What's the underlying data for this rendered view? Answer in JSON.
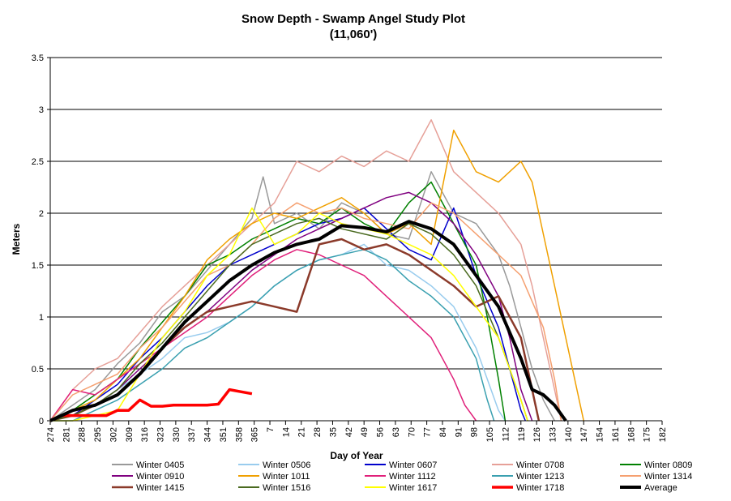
{
  "chart_data": {
    "type": "line",
    "title": "Snow Depth -  Swamp Angel Study Plot",
    "subtitle": "(11,060')",
    "xlabel": "Day of Year",
    "ylabel": "Meters",
    "ylim": [
      0,
      3.5
    ],
    "yticks": [
      "0",
      "0.5",
      "1",
      "1.5",
      "2",
      "2.5",
      "3",
      "3.5"
    ],
    "xticks": [
      "274",
      "281",
      "288",
      "295",
      "302",
      "309",
      "316",
      "323",
      "330",
      "337",
      "344",
      "351",
      "358",
      "365",
      "7",
      "14",
      "21",
      "28",
      "35",
      "42",
      "49",
      "56",
      "63",
      "70",
      "77",
      "84",
      "91",
      "98",
      "105",
      "112",
      "119",
      "126",
      "133",
      "140",
      "147",
      "154",
      "161",
      "168",
      "175",
      "182"
    ],
    "grid": "horizontal",
    "legend_position": "bottom",
    "series": [
      {
        "name": "Winter 0405",
        "color": "#999999",
        "width": 1.5,
        "x": [
          0,
          10,
          20,
          30,
          40,
          50,
          60,
          70,
          80,
          90,
          95,
          100,
          110,
          120,
          130,
          140,
          150,
          160,
          170,
          180,
          190,
          200,
          205,
          210,
          215,
          220,
          225
        ],
        "y": [
          0.0,
          0.15,
          0.3,
          0.55,
          0.75,
          1.05,
          1.2,
          1.45,
          1.7,
          1.95,
          2.35,
          1.9,
          2.0,
          1.85,
          2.1,
          2.0,
          1.8,
          1.75,
          2.4,
          2.0,
          1.9,
          1.6,
          1.3,
          0.9,
          0.5,
          0.2,
          0.0
        ]
      },
      {
        "name": "Winter 0506",
        "color": "#99ccee",
        "width": 1.5,
        "x": [
          0,
          10,
          20,
          30,
          40,
          50,
          60,
          70,
          80,
          90,
          100,
          110,
          120,
          130,
          140,
          150,
          160,
          170,
          180,
          190,
          195,
          200,
          203
        ],
        "y": [
          0.0,
          0.05,
          0.15,
          0.3,
          0.45,
          0.6,
          0.8,
          0.85,
          0.95,
          1.1,
          1.3,
          1.45,
          1.55,
          1.6,
          1.7,
          1.5,
          1.45,
          1.3,
          1.1,
          0.7,
          0.4,
          0.1,
          0.0
        ]
      },
      {
        "name": "Winter 0607",
        "color": "#0000cc",
        "width": 1.5,
        "x": [
          0,
          10,
          20,
          30,
          40,
          50,
          60,
          70,
          80,
          90,
          100,
          110,
          120,
          130,
          140,
          150,
          160,
          170,
          180,
          190,
          200,
          205,
          210,
          212
        ],
        "y": [
          0.0,
          0.05,
          0.2,
          0.35,
          0.6,
          0.8,
          1.05,
          1.3,
          1.5,
          1.6,
          1.7,
          1.8,
          1.9,
          1.95,
          2.05,
          1.85,
          1.65,
          1.55,
          2.05,
          1.4,
          0.9,
          0.5,
          0.1,
          0.0
        ]
      },
      {
        "name": "Winter 0708",
        "color": "#e6a098",
        "width": 1.5,
        "x": [
          0,
          10,
          20,
          30,
          40,
          50,
          60,
          70,
          80,
          90,
          100,
          110,
          120,
          130,
          140,
          150,
          160,
          170,
          180,
          190,
          200,
          210,
          215,
          220,
          225,
          228
        ],
        "y": [
          0.0,
          0.3,
          0.5,
          0.6,
          0.85,
          1.1,
          1.3,
          1.5,
          1.7,
          1.9,
          2.1,
          2.5,
          2.4,
          2.55,
          2.45,
          2.6,
          2.5,
          2.9,
          2.4,
          2.2,
          2.0,
          1.7,
          1.3,
          0.8,
          0.3,
          0.0
        ]
      },
      {
        "name": "Winter 0809",
        "color": "#008000",
        "width": 1.5,
        "x": [
          0,
          10,
          20,
          30,
          40,
          50,
          60,
          70,
          80,
          90,
          100,
          110,
          120,
          130,
          140,
          150,
          160,
          170,
          180,
          190,
          195,
          200,
          203
        ],
        "y": [
          0.0,
          0.1,
          0.25,
          0.4,
          0.7,
          0.95,
          1.2,
          1.5,
          1.6,
          1.75,
          1.85,
          1.95,
          1.9,
          2.05,
          1.9,
          1.8,
          2.1,
          2.3,
          1.9,
          1.5,
          1.0,
          0.4,
          0.0
        ]
      },
      {
        "name": "Winter 0910",
        "color": "#800080",
        "width": 1.5,
        "x": [
          0,
          10,
          20,
          30,
          40,
          50,
          60,
          70,
          80,
          90,
          100,
          110,
          120,
          130,
          140,
          150,
          160,
          170,
          180,
          190,
          200,
          205,
          210,
          215
        ],
        "y": [
          0.0,
          0.05,
          0.15,
          0.3,
          0.5,
          0.7,
          0.9,
          1.05,
          1.25,
          1.45,
          1.6,
          1.75,
          1.85,
          1.95,
          2.05,
          2.15,
          2.2,
          2.1,
          1.9,
          1.6,
          1.2,
          0.8,
          0.3,
          0.0
        ]
      },
      {
        "name": "Winter 1011",
        "color": "#f0a000",
        "width": 1.5,
        "x": [
          0,
          10,
          20,
          30,
          40,
          50,
          60,
          70,
          80,
          90,
          100,
          110,
          120,
          130,
          140,
          150,
          160,
          170,
          180,
          190,
          200,
          210,
          215,
          220,
          225,
          230,
          235,
          238
        ],
        "y": [
          0.0,
          0.1,
          0.2,
          0.4,
          0.6,
          0.9,
          1.2,
          1.55,
          1.75,
          1.9,
          2.0,
          1.95,
          2.05,
          2.15,
          2.0,
          1.8,
          1.9,
          1.7,
          2.8,
          2.4,
          2.3,
          2.5,
          2.3,
          1.8,
          1.3,
          0.8,
          0.3,
          0.0
        ]
      },
      {
        "name": "Winter 1112",
        "color": "#e0207a",
        "width": 1.5,
        "x": [
          0,
          10,
          20,
          30,
          40,
          50,
          60,
          70,
          80,
          90,
          100,
          110,
          120,
          130,
          140,
          150,
          160,
          170,
          175,
          180,
          185,
          190
        ],
        "y": [
          0.0,
          0.3,
          0.25,
          0.4,
          0.55,
          0.7,
          0.85,
          1.0,
          1.2,
          1.4,
          1.55,
          1.65,
          1.6,
          1.5,
          1.4,
          1.2,
          1.0,
          0.8,
          0.6,
          0.4,
          0.15,
          0.0
        ]
      },
      {
        "name": "Winter 1213",
        "color": "#3aa0b0",
        "width": 1.5,
        "x": [
          0,
          10,
          20,
          30,
          40,
          50,
          60,
          70,
          80,
          90,
          100,
          110,
          120,
          130,
          140,
          150,
          160,
          170,
          180,
          190,
          195,
          198
        ],
        "y": [
          0.0,
          0.0,
          0.1,
          0.2,
          0.35,
          0.5,
          0.7,
          0.8,
          0.95,
          1.1,
          1.3,
          1.45,
          1.55,
          1.6,
          1.65,
          1.55,
          1.35,
          1.2,
          1.0,
          0.6,
          0.2,
          0.0
        ]
      },
      {
        "name": "Winter 1314",
        "color": "#f5a070",
        "width": 1.5,
        "x": [
          0,
          10,
          20,
          30,
          40,
          50,
          60,
          70,
          80,
          90,
          100,
          110,
          120,
          130,
          140,
          150,
          160,
          170,
          180,
          190,
          200,
          210,
          220,
          225,
          228
        ],
        "y": [
          0.0,
          0.25,
          0.35,
          0.45,
          0.7,
          0.9,
          1.15,
          1.4,
          1.5,
          1.7,
          1.95,
          2.1,
          2.0,
          2.05,
          1.95,
          1.9,
          1.85,
          2.1,
          2.0,
          1.8,
          1.6,
          1.4,
          0.9,
          0.4,
          0.0
        ]
      },
      {
        "name": "Winter 1415",
        "color": "#8b3a2a",
        "width": 2.5,
        "x": [
          0,
          10,
          20,
          30,
          40,
          50,
          60,
          70,
          80,
          90,
          100,
          110,
          120,
          130,
          140,
          150,
          160,
          170,
          180,
          190,
          200,
          210,
          215,
          218
        ],
        "y": [
          0.0,
          0.05,
          0.15,
          0.25,
          0.45,
          0.7,
          0.9,
          1.05,
          1.1,
          1.15,
          1.1,
          1.05,
          1.7,
          1.75,
          1.65,
          1.7,
          1.6,
          1.45,
          1.3,
          1.1,
          1.2,
          0.8,
          0.3,
          0.0
        ]
      },
      {
        "name": "Winter 1516",
        "color": "#4a6a20",
        "width": 1.5,
        "x": [
          0,
          10,
          20,
          30,
          40,
          50,
          60,
          70,
          80,
          90,
          100,
          110,
          120,
          130,
          140,
          150,
          160,
          170,
          180,
          190,
          200,
          210,
          213
        ],
        "y": [
          0.0,
          0.05,
          0.15,
          0.3,
          0.55,
          0.75,
          1.0,
          1.25,
          1.5,
          1.7,
          1.8,
          1.9,
          1.95,
          1.85,
          1.8,
          1.75,
          1.9,
          1.8,
          1.6,
          1.3,
          0.8,
          0.2,
          0.0
        ]
      },
      {
        "name": "Winter 1617",
        "color": "#ffff00",
        "width": 1.5,
        "x": [
          0,
          10,
          20,
          30,
          40,
          50,
          60,
          70,
          80,
          90,
          100,
          110,
          120,
          130,
          140,
          150,
          160,
          170,
          180,
          190,
          200,
          210,
          213
        ],
        "y": [
          0.0,
          0.0,
          0.05,
          0.1,
          0.45,
          0.8,
          1.05,
          1.4,
          1.6,
          2.05,
          1.7,
          1.8,
          2.0,
          1.9,
          1.85,
          1.8,
          1.7,
          1.6,
          1.4,
          1.1,
          0.8,
          0.2,
          0.0
        ]
      },
      {
        "name": "Winter 1718",
        "color": "#ff0000",
        "width": 3.5,
        "x": [
          0,
          5,
          10,
          15,
          20,
          25,
          30,
          35,
          40,
          45,
          50,
          55,
          60,
          65,
          70,
          75,
          80,
          85,
          90
        ],
        "y": [
          0.0,
          0.05,
          0.05,
          0.05,
          0.05,
          0.05,
          0.1,
          0.1,
          0.2,
          0.14,
          0.14,
          0.15,
          0.15,
          0.15,
          0.15,
          0.16,
          0.3,
          0.28,
          0.26
        ]
      },
      {
        "name": "Average",
        "color": "#000000",
        "width": 4,
        "x": [
          0,
          10,
          20,
          30,
          40,
          50,
          60,
          70,
          80,
          90,
          100,
          110,
          120,
          130,
          140,
          150,
          160,
          170,
          180,
          190,
          200,
          210,
          215,
          220,
          225,
          230
        ],
        "y": [
          0.0,
          0.1,
          0.15,
          0.25,
          0.45,
          0.7,
          0.95,
          1.15,
          1.35,
          1.5,
          1.62,
          1.7,
          1.75,
          1.88,
          1.86,
          1.82,
          1.92,
          1.85,
          1.7,
          1.4,
          1.1,
          0.6,
          0.3,
          0.25,
          0.15,
          0.0
        ]
      }
    ]
  }
}
